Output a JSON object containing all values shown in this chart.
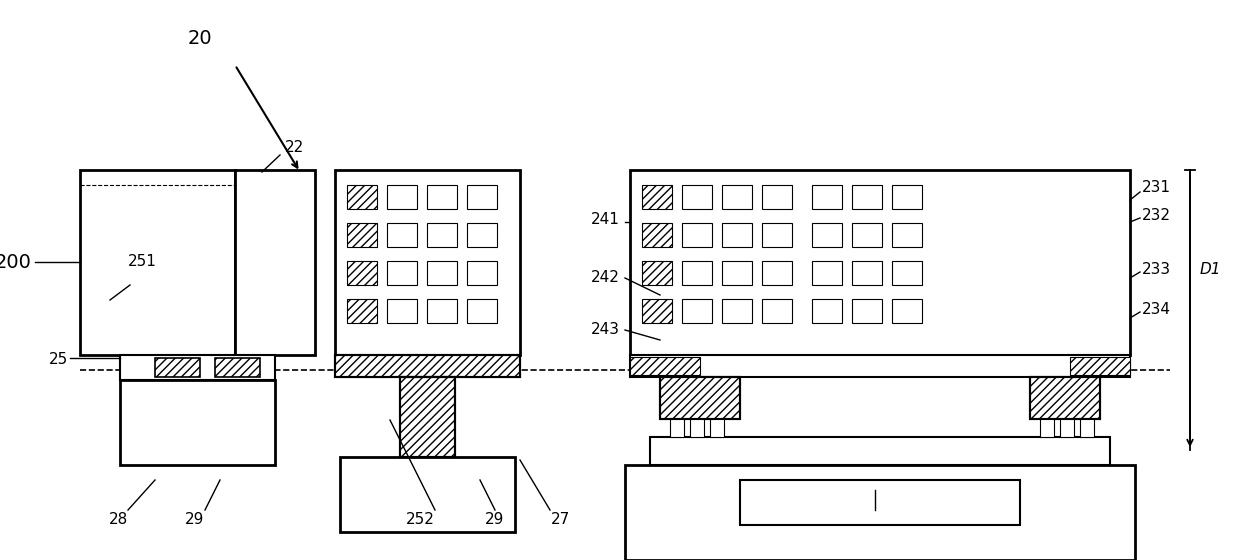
{
  "bg_color": "#ffffff",
  "line_color": "#000000",
  "fig_width": 12.4,
  "fig_height": 5.6,
  "dpi": 100
}
